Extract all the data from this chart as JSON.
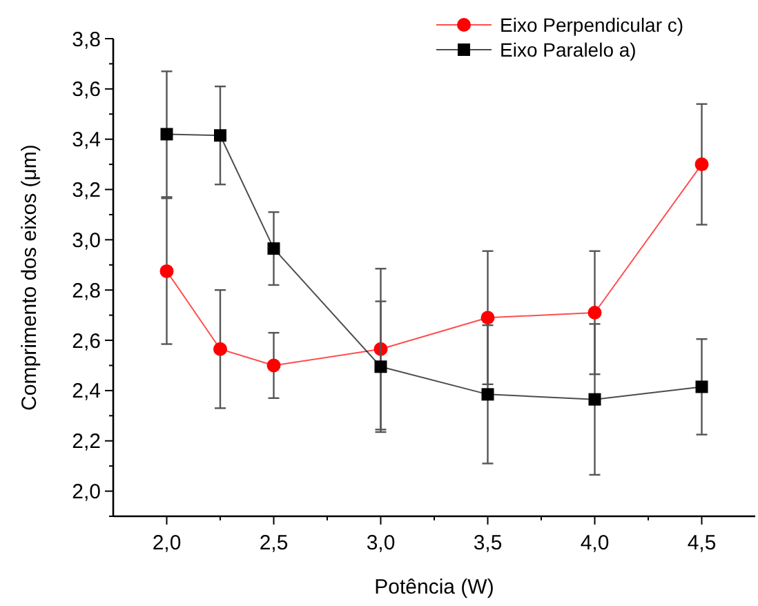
{
  "chart_data": {
    "type": "line",
    "xlabel": "Potência (W)",
    "ylabel": "Comprimento dos eixos (μm)",
    "xlim": [
      1.75,
      4.75
    ],
    "ylim": [
      1.9,
      3.8
    ],
    "xticks": [
      {
        "value": 2,
        "label": "2,0"
      },
      {
        "value": 2.25,
        "label": null
      },
      {
        "value": 2.5,
        "label": "2,5"
      },
      {
        "value": 2.75,
        "label": null
      },
      {
        "value": 3,
        "label": "3,0"
      },
      {
        "value": 3.25,
        "label": null
      },
      {
        "value": 3.5,
        "label": "3,5"
      },
      {
        "value": 3.75,
        "label": null
      },
      {
        "value": 4,
        "label": "4,0"
      },
      {
        "value": 4.25,
        "label": null
      },
      {
        "value": 4.5,
        "label": "4,5"
      }
    ],
    "yticks": [
      {
        "value": 1.9,
        "label": null
      },
      {
        "value": 2,
        "label": "2,0"
      },
      {
        "value": 2.1,
        "label": null
      },
      {
        "value": 2.2,
        "label": "2,2"
      },
      {
        "value": 2.3,
        "label": null
      },
      {
        "value": 2.4,
        "label": "2,4"
      },
      {
        "value": 2.5,
        "label": null
      },
      {
        "value": 2.6,
        "label": "2,6"
      },
      {
        "value": 2.7,
        "label": null
      },
      {
        "value": 2.8,
        "label": "2,8"
      },
      {
        "value": 2.9,
        "label": null
      },
      {
        "value": 3,
        "label": "3,0"
      },
      {
        "value": 3.1,
        "label": null
      },
      {
        "value": 3.2,
        "label": "3,2"
      },
      {
        "value": 3.3,
        "label": null
      },
      {
        "value": 3.4,
        "label": "3,4"
      },
      {
        "value": 3.5,
        "label": null
      },
      {
        "value": 3.6,
        "label": "3,6"
      },
      {
        "value": 3.7,
        "label": null
      },
      {
        "value": 3.8,
        "label": "3,8"
      }
    ],
    "legend": "top right",
    "series": [
      {
        "name": "Eixo Perpendicular c)",
        "color": "#ff0000",
        "marker": "circle",
        "x": [
          2,
          2.25,
          2.5,
          3,
          3.5,
          4,
          4.5
        ],
        "values": [
          2.875,
          2.565,
          2.5,
          2.565,
          2.69,
          2.71,
          3.3
        ],
        "errors": [
          0.29,
          0.235,
          0.13,
          0.32,
          0.265,
          0.245,
          0.24
        ]
      },
      {
        "name": "Eixo Paralelo a)",
        "color": "#000000",
        "marker": "square",
        "x": [
          2,
          2.25,
          2.5,
          3,
          3.5,
          4,
          4.5
        ],
        "values": [
          3.42,
          3.415,
          2.965,
          2.495,
          2.385,
          2.365,
          2.415
        ],
        "errors": [
          0.25,
          0.195,
          0.145,
          0.26,
          0.275,
          0.3,
          0.19
        ]
      }
    ]
  }
}
